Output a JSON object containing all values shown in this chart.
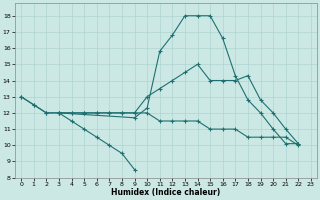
{
  "xlabel": "Humidex (Indice chaleur)",
  "xlim": [
    -0.5,
    23.5
  ],
  "ylim": [
    8,
    18.8
  ],
  "yticks": [
    8,
    9,
    10,
    11,
    12,
    13,
    14,
    15,
    16,
    17,
    18
  ],
  "xticks": [
    0,
    1,
    2,
    3,
    4,
    5,
    6,
    7,
    8,
    9,
    10,
    11,
    12,
    13,
    14,
    15,
    16,
    17,
    18,
    19,
    20,
    21,
    22,
    23
  ],
  "bg_color": "#cce8e5",
  "line_color": "#1e7070",
  "grid_color": "#aed4d0",
  "curve1_x": [
    0,
    1,
    2,
    3,
    4,
    5,
    6,
    7,
    8,
    9
  ],
  "curve1_y": [
    13,
    12.5,
    12,
    12,
    11.5,
    11,
    10.5,
    10,
    9.5,
    8.5
  ],
  "curve2_x": [
    3,
    4,
    5,
    6,
    7,
    8,
    9,
    10,
    11,
    12,
    13,
    14,
    15,
    16,
    17,
    18,
    19,
    20,
    21,
    22
  ],
  "curve2_y": [
    12,
    12,
    12,
    12,
    12,
    12,
    12,
    12,
    11.5,
    11.5,
    11.5,
    11.5,
    11,
    11,
    11,
    10.5,
    10.5,
    10.5,
    10.5,
    10
  ],
  "curve3_x": [
    3,
    4,
    5,
    6,
    7,
    8,
    9,
    10,
    11,
    12,
    13,
    14,
    15,
    16,
    17,
    18,
    19,
    20,
    21,
    22
  ],
  "curve3_y": [
    12,
    12,
    12,
    12,
    12,
    12,
    12,
    13,
    13.5,
    14,
    14.5,
    15,
    14,
    14,
    14,
    14.3,
    12.8,
    12,
    11,
    10.1
  ],
  "curve4_x": [
    0,
    1,
    2,
    3,
    9,
    10,
    11,
    12,
    13,
    14,
    15,
    16,
    17,
    18,
    19,
    20,
    21,
    22
  ],
  "curve4_y": [
    13,
    12.5,
    12,
    12,
    11.7,
    12.3,
    15.8,
    16.8,
    18,
    18,
    18,
    16.6,
    14.3,
    12.8,
    12,
    11,
    10.1,
    10.1
  ]
}
